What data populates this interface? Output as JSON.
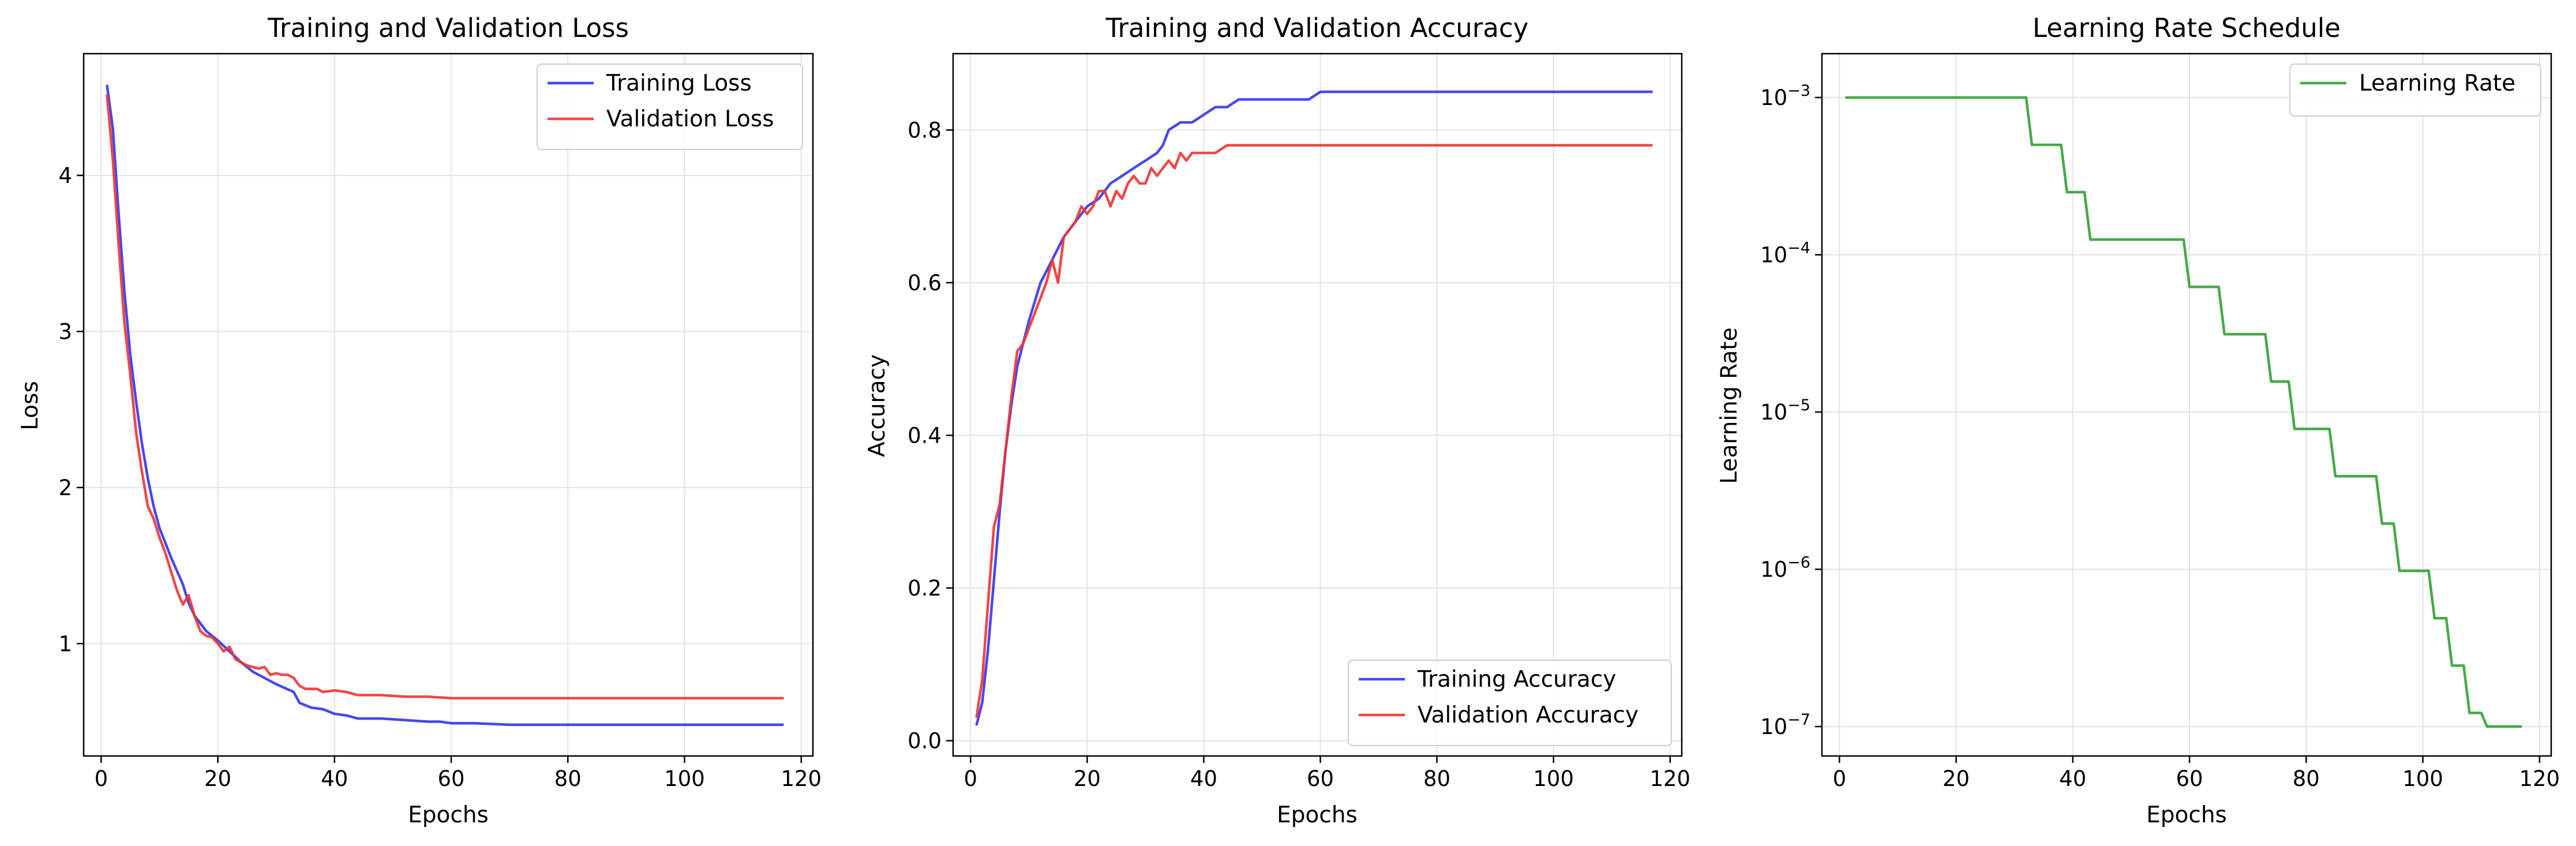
{
  "chart_data": [
    {
      "type": "line",
      "title": "Training and Validation Loss",
      "xlabel": "Epochs",
      "ylabel": "Loss",
      "xlim": [
        -3,
        122
      ],
      "ylim": [
        0.28,
        4.78
      ],
      "xticks": [
        0,
        20,
        40,
        60,
        80,
        100,
        120
      ],
      "yticks": [
        1,
        2,
        3,
        4
      ],
      "grid": true,
      "legend_position": "top-right",
      "series": [
        {
          "name": "Training Loss",
          "color": "#3333ee",
          "points": [
            [
              1,
              4.58
            ],
            [
              2,
              4.3
            ],
            [
              3,
              3.75
            ],
            [
              4,
              3.25
            ],
            [
              5,
              2.85
            ],
            [
              6,
              2.55
            ],
            [
              7,
              2.28
            ],
            [
              8,
              2.06
            ],
            [
              9,
              1.88
            ],
            [
              10,
              1.74
            ],
            [
              12,
              1.55
            ],
            [
              14,
              1.38
            ],
            [
              15,
              1.26
            ],
            [
              16,
              1.18
            ],
            [
              18,
              1.08
            ],
            [
              20,
              1.02
            ],
            [
              22,
              0.95
            ],
            [
              24,
              0.88
            ],
            [
              26,
              0.82
            ],
            [
              28,
              0.78
            ],
            [
              30,
              0.74
            ],
            [
              33,
              0.69
            ],
            [
              34,
              0.62
            ],
            [
              36,
              0.59
            ],
            [
              38,
              0.58
            ],
            [
              40,
              0.55
            ],
            [
              42,
              0.54
            ],
            [
              44,
              0.52
            ],
            [
              48,
              0.52
            ],
            [
              52,
              0.51
            ],
            [
              56,
              0.5
            ],
            [
              58,
              0.5
            ],
            [
              60,
              0.49
            ],
            [
              64,
              0.49
            ],
            [
              70,
              0.48
            ],
            [
              80,
              0.48
            ],
            [
              90,
              0.48
            ],
            [
              100,
              0.48
            ],
            [
              110,
              0.48
            ],
            [
              117,
              0.48
            ]
          ]
        },
        {
          "name": "Validation Loss",
          "color": "#ee3333",
          "points": [
            [
              1,
              4.52
            ],
            [
              2,
              4.1
            ],
            [
              3,
              3.55
            ],
            [
              4,
              3.05
            ],
            [
              5,
              2.72
            ],
            [
              6,
              2.35
            ],
            [
              7,
              2.1
            ],
            [
              8,
              1.88
            ],
            [
              9,
              1.8
            ],
            [
              10,
              1.68
            ],
            [
              11,
              1.58
            ],
            [
              12,
              1.46
            ],
            [
              13,
              1.34
            ],
            [
              14,
              1.25
            ],
            [
              15,
              1.31
            ],
            [
              16,
              1.18
            ],
            [
              17,
              1.08
            ],
            [
              18,
              1.05
            ],
            [
              19,
              1.04
            ],
            [
              20,
              1.0
            ],
            [
              21,
              0.95
            ],
            [
              22,
              0.98
            ],
            [
              23,
              0.9
            ],
            [
              25,
              0.86
            ],
            [
              26,
              0.85
            ],
            [
              27,
              0.84
            ],
            [
              28,
              0.85
            ],
            [
              29,
              0.8
            ],
            [
              30,
              0.81
            ],
            [
              31,
              0.8
            ],
            [
              32,
              0.8
            ],
            [
              33,
              0.78
            ],
            [
              34,
              0.73
            ],
            [
              35,
              0.71
            ],
            [
              37,
              0.71
            ],
            [
              38,
              0.69
            ],
            [
              40,
              0.7
            ],
            [
              42,
              0.69
            ],
            [
              44,
              0.67
            ],
            [
              48,
              0.67
            ],
            [
              52,
              0.66
            ],
            [
              56,
              0.66
            ],
            [
              60,
              0.65
            ],
            [
              70,
              0.65
            ],
            [
              80,
              0.65
            ],
            [
              90,
              0.65
            ],
            [
              100,
              0.65
            ],
            [
              110,
              0.65
            ],
            [
              117,
              0.65
            ]
          ]
        }
      ]
    },
    {
      "type": "line",
      "title": "Training and Validation Accuracy",
      "xlabel": "Epochs",
      "ylabel": "Accuracy",
      "xlim": [
        -3,
        122
      ],
      "ylim": [
        -0.02,
        0.9
      ],
      "xticks": [
        0,
        20,
        40,
        60,
        80,
        100,
        120
      ],
      "yticks": [
        0.0,
        0.2,
        0.4,
        0.6,
        0.8
      ],
      "ytick_labels": [
        "0.0",
        "0.2",
        "0.4",
        "0.6",
        "0.8"
      ],
      "grid": true,
      "legend_position": "bottom-right",
      "series": [
        {
          "name": "Training Accuracy",
          "color": "#3333ee",
          "points": [
            [
              1,
              0.02
            ],
            [
              2,
              0.05
            ],
            [
              3,
              0.12
            ],
            [
              4,
              0.21
            ],
            [
              5,
              0.3
            ],
            [
              6,
              0.38
            ],
            [
              7,
              0.44
            ],
            [
              8,
              0.49
            ],
            [
              9,
              0.52
            ],
            [
              10,
              0.55
            ],
            [
              12,
              0.6
            ],
            [
              14,
              0.63
            ],
            [
              16,
              0.66
            ],
            [
              18,
              0.68
            ],
            [
              20,
              0.7
            ],
            [
              22,
              0.71
            ],
            [
              24,
              0.73
            ],
            [
              26,
              0.74
            ],
            [
              28,
              0.75
            ],
            [
              30,
              0.76
            ],
            [
              32,
              0.77
            ],
            [
              33,
              0.78
            ],
            [
              34,
              0.8
            ],
            [
              36,
              0.81
            ],
            [
              38,
              0.81
            ],
            [
              40,
              0.82
            ],
            [
              42,
              0.83
            ],
            [
              44,
              0.83
            ],
            [
              46,
              0.84
            ],
            [
              50,
              0.84
            ],
            [
              54,
              0.84
            ],
            [
              58,
              0.84
            ],
            [
              60,
              0.85
            ],
            [
              66,
              0.85
            ],
            [
              70,
              0.85
            ],
            [
              80,
              0.85
            ],
            [
              90,
              0.85
            ],
            [
              100,
              0.85
            ],
            [
              110,
              0.85
            ],
            [
              117,
              0.85
            ]
          ]
        },
        {
          "name": "Validation Accuracy",
          "color": "#ee3333",
          "points": [
            [
              1,
              0.03
            ],
            [
              2,
              0.08
            ],
            [
              3,
              0.18
            ],
            [
              4,
              0.28
            ],
            [
              5,
              0.31
            ],
            [
              6,
              0.38
            ],
            [
              7,
              0.45
            ],
            [
              8,
              0.51
            ],
            [
              9,
              0.52
            ],
            [
              10,
              0.54
            ],
            [
              11,
              0.56
            ],
            [
              12,
              0.58
            ],
            [
              13,
              0.6
            ],
            [
              14,
              0.63
            ],
            [
              15,
              0.6
            ],
            [
              16,
              0.66
            ],
            [
              17,
              0.67
            ],
            [
              18,
              0.68
            ],
            [
              19,
              0.7
            ],
            [
              20,
              0.69
            ],
            [
              21,
              0.7
            ],
            [
              22,
              0.72
            ],
            [
              23,
              0.72
            ],
            [
              24,
              0.7
            ],
            [
              25,
              0.72
            ],
            [
              26,
              0.71
            ],
            [
              27,
              0.73
            ],
            [
              28,
              0.74
            ],
            [
              29,
              0.73
            ],
            [
              30,
              0.73
            ],
            [
              31,
              0.75
            ],
            [
              32,
              0.74
            ],
            [
              33,
              0.75
            ],
            [
              34,
              0.76
            ],
            [
              35,
              0.75
            ],
            [
              36,
              0.77
            ],
            [
              37,
              0.76
            ],
            [
              38,
              0.77
            ],
            [
              40,
              0.77
            ],
            [
              42,
              0.77
            ],
            [
              44,
              0.78
            ],
            [
              48,
              0.78
            ],
            [
              52,
              0.78
            ],
            [
              56,
              0.78
            ],
            [
              60,
              0.78
            ],
            [
              70,
              0.78
            ],
            [
              80,
              0.78
            ],
            [
              90,
              0.78
            ],
            [
              100,
              0.78
            ],
            [
              110,
              0.78
            ],
            [
              117,
              0.78
            ]
          ]
        }
      ]
    },
    {
      "type": "line",
      "title": "Learning Rate Schedule",
      "xlabel": "Epochs",
      "ylabel": "Learning Rate",
      "xlim": [
        -3,
        122
      ],
      "yscale": "log",
      "ylim": [
        6.5e-08,
        0.0019
      ],
      "xticks": [
        0,
        20,
        40,
        60,
        80,
        100,
        120
      ],
      "yticks": [
        1e-07,
        1e-06,
        1e-05,
        0.0001,
        0.001
      ],
      "ytick_labels": [
        {
          "base": "10",
          "exp": "−7"
        },
        {
          "base": "10",
          "exp": "−6"
        },
        {
          "base": "10",
          "exp": "−5"
        },
        {
          "base": "10",
          "exp": "−4"
        },
        {
          "base": "10",
          "exp": "−3"
        }
      ],
      "grid": true,
      "legend_position": "top-right",
      "series": [
        {
          "name": "Learning Rate",
          "color": "#33a033",
          "step": true,
          "points": [
            [
              1,
              0.001
            ],
            [
              32,
              0.001
            ],
            [
              33,
              0.0005
            ],
            [
              38,
              0.0005
            ],
            [
              39,
              0.00025
            ],
            [
              42,
              0.00025
            ],
            [
              43,
              0.000125
            ],
            [
              59,
              0.000125
            ],
            [
              60,
              6.25e-05
            ],
            [
              65,
              6.25e-05
            ],
            [
              66,
              3.125e-05
            ],
            [
              73,
              3.125e-05
            ],
            [
              74,
              1.5625e-05
            ],
            [
              77,
              1.5625e-05
            ],
            [
              78,
              7.8125e-06
            ],
            [
              84,
              7.8125e-06
            ],
            [
              85,
              3.90625e-06
            ],
            [
              92,
              3.90625e-06
            ],
            [
              93,
              1.953125e-06
            ],
            [
              95,
              1.953125e-06
            ],
            [
              96,
              9.765625e-07
            ],
            [
              101,
              9.765625e-07
            ],
            [
              102,
              4.8828125e-07
            ],
            [
              104,
              4.8828125e-07
            ],
            [
              105,
              2.44140625e-07
            ],
            [
              107,
              2.44140625e-07
            ],
            [
              108,
              1.220703125e-07
            ],
            [
              110,
              1.220703125e-07
            ],
            [
              111,
              1e-07
            ],
            [
              117,
              1e-07
            ]
          ]
        }
      ]
    }
  ]
}
